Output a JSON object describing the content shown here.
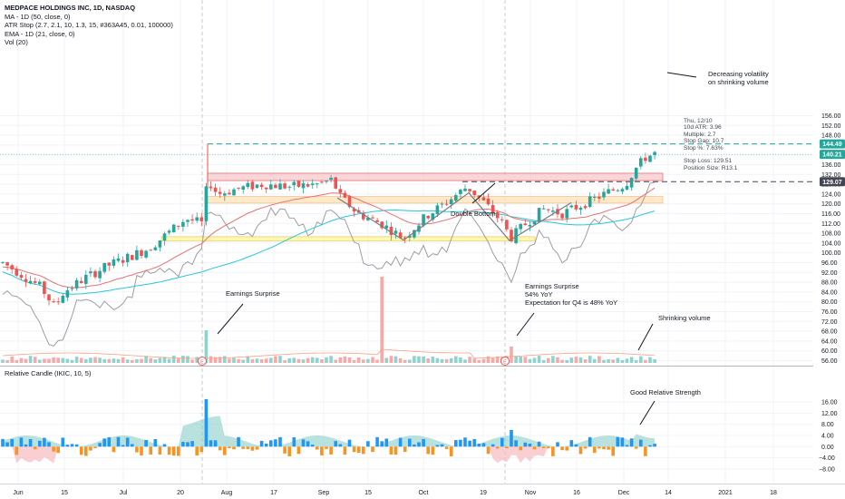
{
  "legend": {
    "title": "MEDPACE HOLDINGS INC, 1D, NASDAQ",
    "lines": [
      "MA - 1D (50, close, 0)",
      "ATR Stop (2.7, 2.1, 10, 1.3, 15, #363A45, 0.01, 100000)",
      "EMA - 1D (21, close, 0)",
      "Vol (20)"
    ]
  },
  "sub_legend": "Relative Candle (IKIC, 10, 5)",
  "price_tags": [
    {
      "label": "144.49",
      "value": 144.49,
      "color": "#26a69a"
    },
    {
      "label": "140.21",
      "value": 140.21,
      "color": "#26a69a"
    },
    {
      "label": "129.07",
      "value": 129.07,
      "color": "#434651"
    }
  ],
  "info_box": [
    "Thu, 12/10",
    "10d ATR: 3.96",
    "Multiple: 2.7",
    "Stop Gap: 10.7",
    "Stop %: 7.63%",
    "",
    "Stop Loss: 129.51",
    "Position Size: R13.1"
  ],
  "annotations": {
    "earnings_1": "Earnings Surprise",
    "earnings_2": [
      "Earnings Surprise",
      "54% YoY",
      "Expectation for Q4 is 48% YoY"
    ],
    "double_bottom": "Double Bottom",
    "decreasing_vol": [
      "Decreasing volatility",
      "on shrinking volume"
    ],
    "shrinking_vol": "Shrinking volume",
    "relative_strength": "Good Relative Strength"
  },
  "earnings_marker": "E",
  "colors": {
    "up": "#26a69a",
    "down": "#ef5350",
    "ma50": "#26c6da",
    "ema21": "#e57373",
    "rs_line": "#9e9e9e",
    "zone_red": "#f8c8cc",
    "zone_orange": "#fde2b8",
    "zone_yellow": "#fff3a6",
    "rel_up": "#2196f3",
    "rel_down": "#f7931e"
  },
  "chart_data": [
    {
      "type": "candlestick",
      "title": "MEDPACE HOLDINGS INC, 1D, NASDAQ",
      "x_axis_labels": [
        "Jun",
        "15",
        "Jul",
        "20",
        "Aug",
        "17",
        "Sep",
        "15",
        "Oct",
        "19",
        "Nov",
        "16",
        "Dec",
        "14",
        "2021",
        "18"
      ],
      "y_ticks": [
        56,
        60,
        64,
        68,
        72,
        76,
        80,
        84,
        88,
        92,
        96,
        100,
        104,
        108,
        112,
        116,
        120,
        124,
        128,
        132,
        136,
        140,
        144,
        148,
        152,
        156
      ],
      "ylim": [
        54,
        158
      ],
      "levels": {
        "horizontal_dashed_green": 144.49,
        "horizontal_dashed_gray": 129.07
      },
      "zones": [
        {
          "name": "red",
          "from": 129.5,
          "to": 132.5
        },
        {
          "name": "orange",
          "from": 120.3,
          "to": 123.0
        },
        {
          "name": "yellow",
          "from": 104.8,
          "to": 106.6
        }
      ],
      "double_bottom_pattern": [
        [
          147,
          122.5
        ],
        [
          164,
          105.2
        ],
        [
          181,
          124.5
        ],
        [
          198,
          105.0
        ],
        [
          213,
          120.5
        ]
      ],
      "last_close": 140.21
    },
    {
      "type": "bar",
      "name": "Vol (20)",
      "notable_spikes": [
        "earnings in late July",
        "mid-September spike",
        "earnings in late October"
      ]
    },
    {
      "type": "bar",
      "name": "Relative Candle (IKIC, 10, 5)",
      "y_ticks": [
        -8,
        -4,
        0,
        4,
        8,
        12,
        16
      ],
      "ylim": [
        -10,
        18
      ]
    }
  ]
}
